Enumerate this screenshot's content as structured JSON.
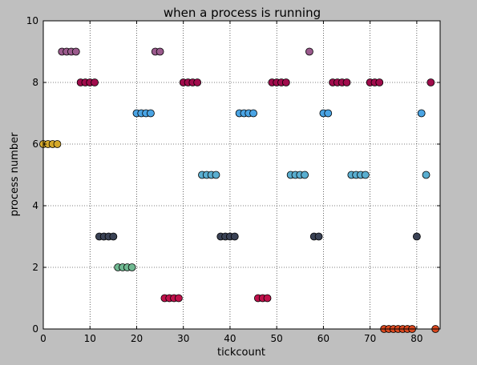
{
  "chart_data": {
    "type": "scatter",
    "title": "when a process is running",
    "xlabel": "tickcount",
    "ylabel": "process number",
    "xlim": [
      0,
      85
    ],
    "ylim": [
      0,
      10
    ],
    "xticks": [
      0,
      10,
      20,
      30,
      40,
      50,
      60,
      70,
      80
    ],
    "yticks": [
      0,
      2,
      4,
      6,
      8,
      10
    ],
    "grid": true,
    "marker": "circle",
    "series": [
      {
        "process": 0,
        "color": "#d9481f",
        "x": [
          73,
          74,
          75,
          76,
          77,
          78,
          79,
          84
        ],
        "y": [
          0,
          0,
          0,
          0,
          0,
          0,
          0,
          0
        ]
      },
      {
        "process": 1,
        "color": "#c0114b",
        "x": [
          26,
          27,
          28,
          29,
          46,
          47,
          48
        ],
        "y": [
          1,
          1,
          1,
          1,
          1,
          1,
          1
        ]
      },
      {
        "process": 2,
        "color": "#6fb891",
        "x": [
          16,
          17,
          18,
          19
        ],
        "y": [
          2,
          2,
          2,
          2
        ]
      },
      {
        "process": 3,
        "color": "#3a4255",
        "x": [
          12,
          13,
          14,
          15,
          38,
          39,
          40,
          41,
          58,
          59,
          80
        ],
        "y": [
          3,
          3,
          3,
          3,
          3,
          3,
          3,
          3,
          3,
          3,
          3
        ]
      },
      {
        "process": 5,
        "color": "#5aaed0",
        "x": [
          34,
          35,
          36,
          37,
          53,
          54,
          55,
          56,
          66,
          67,
          68,
          69,
          82
        ],
        "y": [
          5,
          5,
          5,
          5,
          5,
          5,
          5,
          5,
          5,
          5,
          5,
          5,
          5
        ]
      },
      {
        "process": 6,
        "color": "#d4a82a",
        "x": [
          0,
          1,
          2,
          3
        ],
        "y": [
          6,
          6,
          6,
          6
        ]
      },
      {
        "process": 7,
        "color": "#4aa4e4",
        "x": [
          20,
          21,
          22,
          23,
          42,
          43,
          44,
          45,
          60,
          61,
          81
        ],
        "y": [
          7,
          7,
          7,
          7,
          7,
          7,
          7,
          7,
          7,
          7,
          7
        ]
      },
      {
        "process": 8,
        "color": "#a00c4c",
        "x": [
          8,
          9,
          10,
          11,
          30,
          31,
          32,
          33,
          49,
          50,
          51,
          52,
          62,
          63,
          64,
          65,
          70,
          71,
          72,
          83
        ],
        "y": [
          8,
          8,
          8,
          8,
          8,
          8,
          8,
          8,
          8,
          8,
          8,
          8,
          8,
          8,
          8,
          8,
          8,
          8,
          8,
          8
        ]
      },
      {
        "process": 9,
        "color": "#9a5a8c",
        "x": [
          4,
          5,
          6,
          7,
          24,
          25,
          57
        ],
        "y": [
          9,
          9,
          9,
          9,
          9,
          9,
          9
        ]
      }
    ]
  }
}
